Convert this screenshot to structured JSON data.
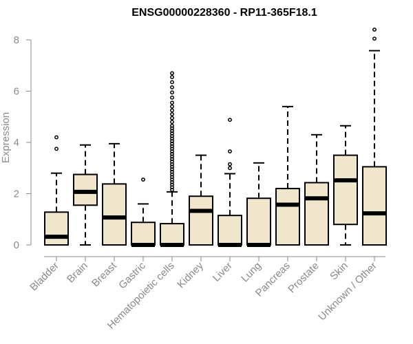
{
  "chart_data": {
    "type": "boxplot",
    "title": "ENSG00000228360 - RP11-365F18.1",
    "ylabel": "Expression",
    "ylim": [
      0,
      8.4
    ],
    "yticks": [
      0,
      2,
      4,
      6,
      8
    ],
    "box_fill": "#efe6cc",
    "box_stroke": "#000000",
    "categories": [
      "Bladder",
      "Brain",
      "Breast",
      "Gastric",
      "Hematopoietic cells",
      "Kidney",
      "Liver",
      "Lung",
      "Pancreas",
      "Prostate",
      "Skin",
      "Unknown / Other"
    ],
    "boxes": [
      {
        "category": "Bladder",
        "whisker_low": 0,
        "q1": 0,
        "median": 0.32,
        "q3": 1.28,
        "whisker_high": 2.8,
        "outliers": [
          3.75,
          4.2
        ]
      },
      {
        "category": "Brain",
        "whisker_low": 0,
        "q1": 1.55,
        "median": 2.07,
        "q3": 2.75,
        "whisker_high": 3.9,
        "outliers": []
      },
      {
        "category": "Breast",
        "whisker_low": 0,
        "q1": 0,
        "median": 1.07,
        "q3": 2.38,
        "whisker_high": 3.95,
        "outliers": []
      },
      {
        "category": "Gastric",
        "whisker_low": 0,
        "q1": 0,
        "median": 0,
        "q3": 0.88,
        "whisker_high": 1.6,
        "outliers": [
          2.55
        ]
      },
      {
        "category": "Hematopoietic cells",
        "whisker_low": 0,
        "q1": 0,
        "median": 0,
        "q3": 0.83,
        "whisker_high": 2.07,
        "outliers": [
          2.15,
          2.25,
          2.35,
          2.45,
          2.55,
          2.65,
          2.75,
          2.85,
          2.95,
          3.05,
          3.15,
          3.25,
          3.35,
          3.45,
          3.55,
          3.65,
          3.75,
          3.85,
          3.95,
          4.05,
          4.15,
          4.25,
          4.35,
          4.45,
          4.55,
          4.65,
          4.8,
          4.95,
          5.1,
          5.25,
          5.4,
          5.55,
          5.75,
          5.95,
          6.15,
          6.35,
          6.55,
          6.7
        ]
      },
      {
        "category": "Kidney",
        "whisker_low": 0,
        "q1": 0,
        "median": 1.33,
        "q3": 1.9,
        "whisker_high": 3.5,
        "outliers": []
      },
      {
        "category": "Liver",
        "whisker_low": 0,
        "q1": 0,
        "median": 0,
        "q3": 1.15,
        "whisker_high": 2.78,
        "outliers": [
          3.0,
          3.15,
          3.65,
          4.88
        ]
      },
      {
        "category": "Lung",
        "whisker_low": 0,
        "q1": 0,
        "median": 0,
        "q3": 1.82,
        "whisker_high": 3.2,
        "outliers": []
      },
      {
        "category": "Pancreas",
        "whisker_low": 0,
        "q1": 0,
        "median": 1.57,
        "q3": 2.2,
        "whisker_high": 5.4,
        "outliers": []
      },
      {
        "category": "Prostate",
        "whisker_low": 0,
        "q1": 0,
        "median": 1.82,
        "q3": 2.43,
        "whisker_high": 4.3,
        "outliers": []
      },
      {
        "category": "Skin",
        "whisker_low": 0,
        "q1": 0.8,
        "median": 2.52,
        "q3": 3.5,
        "whisker_high": 4.65,
        "outliers": []
      },
      {
        "category": "Unknown / Other",
        "whisker_low": 0,
        "q1": 0,
        "median": 1.23,
        "q3": 3.05,
        "whisker_high": 7.58,
        "outliers": [
          8.05,
          8.4
        ]
      }
    ]
  }
}
